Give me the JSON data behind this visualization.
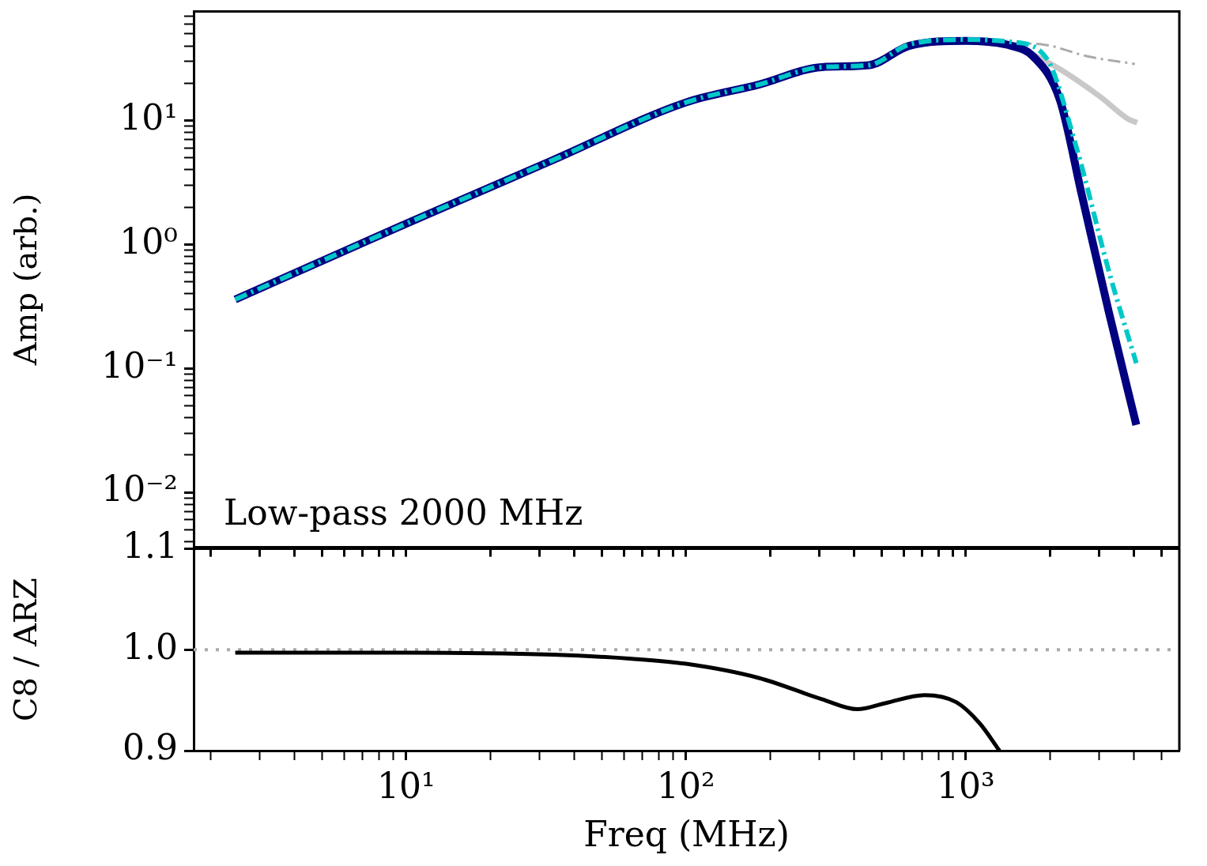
{
  "chart_data": [
    {
      "type": "line",
      "ylabel": "Amp (arb.)",
      "log": "xy",
      "grid": false,
      "legend": false,
      "marker": "none",
      "tick_labels": "y",
      "annotations": [
        "Low-pass 2000 MHz"
      ],
      "xlim": [
        1.74,
        5800
      ],
      "xticks": [
        2,
        3,
        4,
        5,
        6,
        7,
        8,
        9,
        10,
        20,
        30,
        40,
        50,
        60,
        70,
        80,
        90,
        100,
        200,
        300,
        400,
        500,
        600,
        700,
        800,
        900,
        1000,
        2000,
        3000,
        4000,
        5000
      ],
      "ylim": [
        0.0036,
        76
      ],
      "yticks": [
        {
          "value": 0.004,
          "label": null
        },
        {
          "value": 0.005,
          "label": null
        },
        {
          "value": 0.006,
          "label": null
        },
        {
          "value": 0.007,
          "label": null
        },
        {
          "value": 0.008,
          "label": null
        },
        {
          "value": 0.009,
          "label": null
        },
        {
          "value": 0.01,
          "label": "10⁻²"
        },
        {
          "value": 0.02,
          "label": null
        },
        {
          "value": 0.03,
          "label": null
        },
        {
          "value": 0.04,
          "label": null
        },
        {
          "value": 0.05,
          "label": null
        },
        {
          "value": 0.06,
          "label": null
        },
        {
          "value": 0.07,
          "label": null
        },
        {
          "value": 0.08,
          "label": null
        },
        {
          "value": 0.09,
          "label": null
        },
        {
          "value": 0.1,
          "label": "10⁻¹"
        },
        {
          "value": 0.2,
          "label": null
        },
        {
          "value": 0.3,
          "label": null
        },
        {
          "value": 0.4,
          "label": null
        },
        {
          "value": 0.5,
          "label": null
        },
        {
          "value": 0.6,
          "label": null
        },
        {
          "value": 0.7,
          "label": null
        },
        {
          "value": 0.8,
          "label": null
        },
        {
          "value": 0.9,
          "label": null
        },
        {
          "value": 1,
          "label": "10⁰"
        },
        {
          "value": 2,
          "label": null
        },
        {
          "value": 3,
          "label": null
        },
        {
          "value": 4,
          "label": null
        },
        {
          "value": 5,
          "label": null
        },
        {
          "value": 6,
          "label": null
        },
        {
          "value": 7,
          "label": null
        },
        {
          "value": 8,
          "label": null
        },
        {
          "value": 9,
          "label": null
        },
        {
          "value": 10,
          "label": "10¹"
        },
        {
          "value": 20,
          "label": null
        },
        {
          "value": 30,
          "label": null
        },
        {
          "value": 40,
          "label": null
        },
        {
          "value": 50,
          "label": null
        },
        {
          "value": 60,
          "label": null
        },
        {
          "value": 70,
          "label": null
        }
      ],
      "series": [
        {
          "color": "#aaaaaa",
          "line_style": "dashed",
          "x": [
            1460,
            1900,
            2720,
            4020
          ],
          "values": [
            42,
            41,
            33,
            28.6
          ]
        },
        {
          "color": "#c8c8c8",
          "line_style": "solid",
          "x": [
            1460,
            1740,
            2170,
            3020,
            3800,
            4100
          ],
          "values": [
            41,
            34,
            26,
            15.6,
            10.3,
            9.6
          ]
        },
        {
          "color": "#000080",
          "line_style": "solid",
          "x": [
            2.45,
            10,
            33.5,
            100,
            182,
            306,
            452,
            627,
            1000,
            1460,
            1740,
            2170,
            2600,
            3240,
            4070
          ],
          "values": [
            0.36,
            1.47,
            4.8,
            14,
            19.5,
            27,
            28,
            40,
            44,
            40,
            33,
            14.7,
            2.5,
            0.29,
            0.035
          ]
        },
        {
          "color": "#00c8c8",
          "line_style": "dashed",
          "x": [
            2.45,
            10,
            33.5,
            100,
            182,
            306,
            452,
            627,
            1000,
            1460,
            1940,
            2480,
            3240,
            4070
          ],
          "values": [
            0.36,
            1.47,
            4.8,
            14,
            19.5,
            27,
            28,
            41,
            45,
            43,
            32,
            6.2,
            0.62,
            0.11
          ]
        }
      ]
    },
    {
      "type": "line",
      "xlabel": "Freq (MHz)",
      "ylabel": "C8 / ARZ",
      "log": "x",
      "grid": false,
      "legend": false,
      "marker": "none",
      "xlim": [
        1.74,
        5800
      ],
      "xticks": [
        {
          "value": 2,
          "label": null
        },
        {
          "value": 3,
          "label": null
        },
        {
          "value": 4,
          "label": null
        },
        {
          "value": 5,
          "label": null
        },
        {
          "value": 6,
          "label": null
        },
        {
          "value": 7,
          "label": null
        },
        {
          "value": 8,
          "label": null
        },
        {
          "value": 9,
          "label": null
        },
        {
          "value": 10,
          "label": "10¹"
        },
        {
          "value": 20,
          "label": null
        },
        {
          "value": 30,
          "label": null
        },
        {
          "value": 40,
          "label": null
        },
        {
          "value": 50,
          "label": null
        },
        {
          "value": 60,
          "label": null
        },
        {
          "value": 70,
          "label": null
        },
        {
          "value": 80,
          "label": null
        },
        {
          "value": 90,
          "label": null
        },
        {
          "value": 100,
          "label": "10²"
        },
        {
          "value": 200,
          "label": null
        },
        {
          "value": 300,
          "label": null
        },
        {
          "value": 400,
          "label": null
        },
        {
          "value": 500,
          "label": null
        },
        {
          "value": 600,
          "label": null
        },
        {
          "value": 700,
          "label": null
        },
        {
          "value": 800,
          "label": null
        },
        {
          "value": 900,
          "label": null
        },
        {
          "value": 1000,
          "label": "10³"
        },
        {
          "value": 2000,
          "label": null
        },
        {
          "value": 3000,
          "label": null
        },
        {
          "value": 4000,
          "label": null
        },
        {
          "value": 5000,
          "label": null
        }
      ],
      "ylim": [
        0.9,
        1.1
      ],
      "yticks": [
        {
          "value": 0.9,
          "label": "0.9"
        },
        {
          "value": 1,
          "label": "1.0"
        },
        {
          "value": 1.1,
          "label": "1.1"
        }
      ],
      "ref_lines": [
        {
          "axis": "y",
          "value": 1,
          "color": "#aaaaaa",
          "line_style": "dotted"
        }
      ],
      "series": [
        {
          "color": "#000000",
          "line_style": "solid",
          "x": [
            2.45,
            10,
            33.5,
            64,
            100,
            182,
            306,
            410,
            515,
            713,
            925,
            1122,
            1320
          ],
          "values": [
            0.997,
            0.997,
            0.995,
            0.991,
            0.986,
            0.972,
            0.951,
            0.941,
            0.947,
            0.955,
            0.948,
            0.927,
            0.9
          ]
        }
      ]
    }
  ]
}
